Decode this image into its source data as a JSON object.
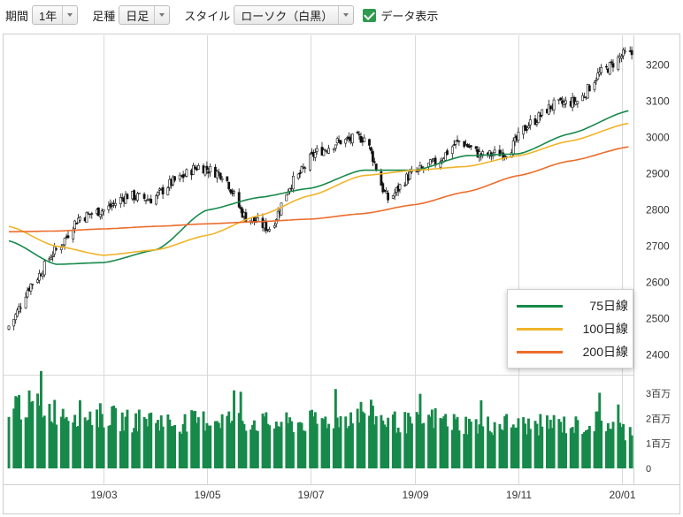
{
  "toolbar": {
    "period_label": "期間",
    "period_value": "1年",
    "candle_label": "足種",
    "candle_value": "日足",
    "style_label": "スタイル",
    "style_value": "ローソク（白黒）",
    "data_display_label": "データ表示",
    "data_display_checked": true
  },
  "chart_data": {
    "type": "candlestick",
    "x_tick_labels": [
      "19/03",
      "19/05",
      "19/07",
      "19/09",
      "19/11",
      "20/01"
    ],
    "price_tick_labels": [
      "2400",
      "2500",
      "2600",
      "2700",
      "2800",
      "2900",
      "3000",
      "3100",
      "3200"
    ],
    "price_ylim": [
      2360,
      3270
    ],
    "volume_tick_labels": [
      "0",
      "1百万",
      "2百万",
      "3百万"
    ],
    "volume_ylim": [
      0,
      3500000
    ],
    "grid": true,
    "legend_position": "bottom-right",
    "price_series": {
      "x": [
        "2019-01-04",
        "2019-01-18",
        "2019-02-01",
        "2019-02-15",
        "2019-03-01",
        "2019-03-15",
        "2019-03-29",
        "2019-04-12",
        "2019-04-26",
        "2019-05-10",
        "2019-05-24",
        "2019-06-07",
        "2019-06-21",
        "2019-07-05",
        "2019-07-19",
        "2019-08-02",
        "2019-08-16",
        "2019-08-30",
        "2019-09-13",
        "2019-09-27",
        "2019-10-11",
        "2019-10-25",
        "2019-11-08",
        "2019-11-22",
        "2019-12-06",
        "2019-12-20",
        "2020-01-03"
      ],
      "close": [
        2480,
        2600,
        2690,
        2780,
        2800,
        2840,
        2830,
        2880,
        2920,
        2900,
        2780,
        2750,
        2880,
        2960,
        2990,
        3000,
        2830,
        2900,
        2930,
        2990,
        2950,
        2960,
        3040,
        3090,
        3100,
        3180,
        3230
      ]
    },
    "series": [
      {
        "name": "75日線",
        "color": "#17894a",
        "x": [
          "2019-01-04",
          "2019-02-01",
          "2019-03-01",
          "2019-04-01",
          "2019-05-01",
          "2019-06-01",
          "2019-07-01",
          "2019-08-01",
          "2019-09-01",
          "2019-10-01",
          "2019-11-01",
          "2019-12-01",
          "2020-01-06"
        ],
        "values": [
          2715,
          2650,
          2655,
          2690,
          2800,
          2835,
          2860,
          2910,
          2910,
          2950,
          2955,
          3010,
          3075
        ]
      },
      {
        "name": "100日線",
        "color": "#f0b429",
        "x": [
          "2019-01-04",
          "2019-02-01",
          "2019-03-01",
          "2019-04-01",
          "2019-05-01",
          "2019-06-01",
          "2019-07-01",
          "2019-08-01",
          "2019-09-01",
          "2019-10-01",
          "2019-11-01",
          "2019-12-01",
          "2020-01-06"
        ],
        "values": [
          2755,
          2700,
          2675,
          2690,
          2730,
          2785,
          2840,
          2895,
          2910,
          2920,
          2950,
          2990,
          3040
        ]
      },
      {
        "name": "200日線",
        "color": "#ec6d2c",
        "x": [
          "2019-01-04",
          "2019-02-01",
          "2019-03-01",
          "2019-04-01",
          "2019-05-01",
          "2019-06-01",
          "2019-07-01",
          "2019-08-01",
          "2019-09-01",
          "2019-10-01",
          "2019-11-01",
          "2019-12-01",
          "2020-01-06"
        ],
        "values": [
          2740,
          2742,
          2748,
          2755,
          2762,
          2768,
          2775,
          2790,
          2815,
          2850,
          2895,
          2935,
          2975
        ]
      }
    ],
    "volume": {
      "color": "#17894a",
      "x": [
        "2019-01-04",
        "2019-01-18",
        "2019-02-01",
        "2019-02-15",
        "2019-03-01",
        "2019-03-15",
        "2019-03-29",
        "2019-04-12",
        "2019-04-26",
        "2019-05-10",
        "2019-05-24",
        "2019-06-07",
        "2019-06-21",
        "2019-07-05",
        "2019-07-19",
        "2019-08-02",
        "2019-08-16",
        "2019-08-30",
        "2019-09-13",
        "2019-09-27",
        "2019-10-11",
        "2019-10-25",
        "2019-11-08",
        "2019-11-22",
        "2019-12-06",
        "2019-12-20",
        "2020-01-03"
      ],
      "values": [
        2600000,
        2500000,
        2300000,
        2200000,
        2100000,
        1900000,
        2000000,
        1800000,
        1900000,
        2000000,
        1900000,
        1800000,
        1800000,
        1900000,
        2000000,
        2300000,
        1900000,
        1800000,
        2000000,
        1800000,
        1700000,
        1800000,
        1700000,
        1800000,
        1700000,
        1900000,
        1500000
      ]
    }
  }
}
